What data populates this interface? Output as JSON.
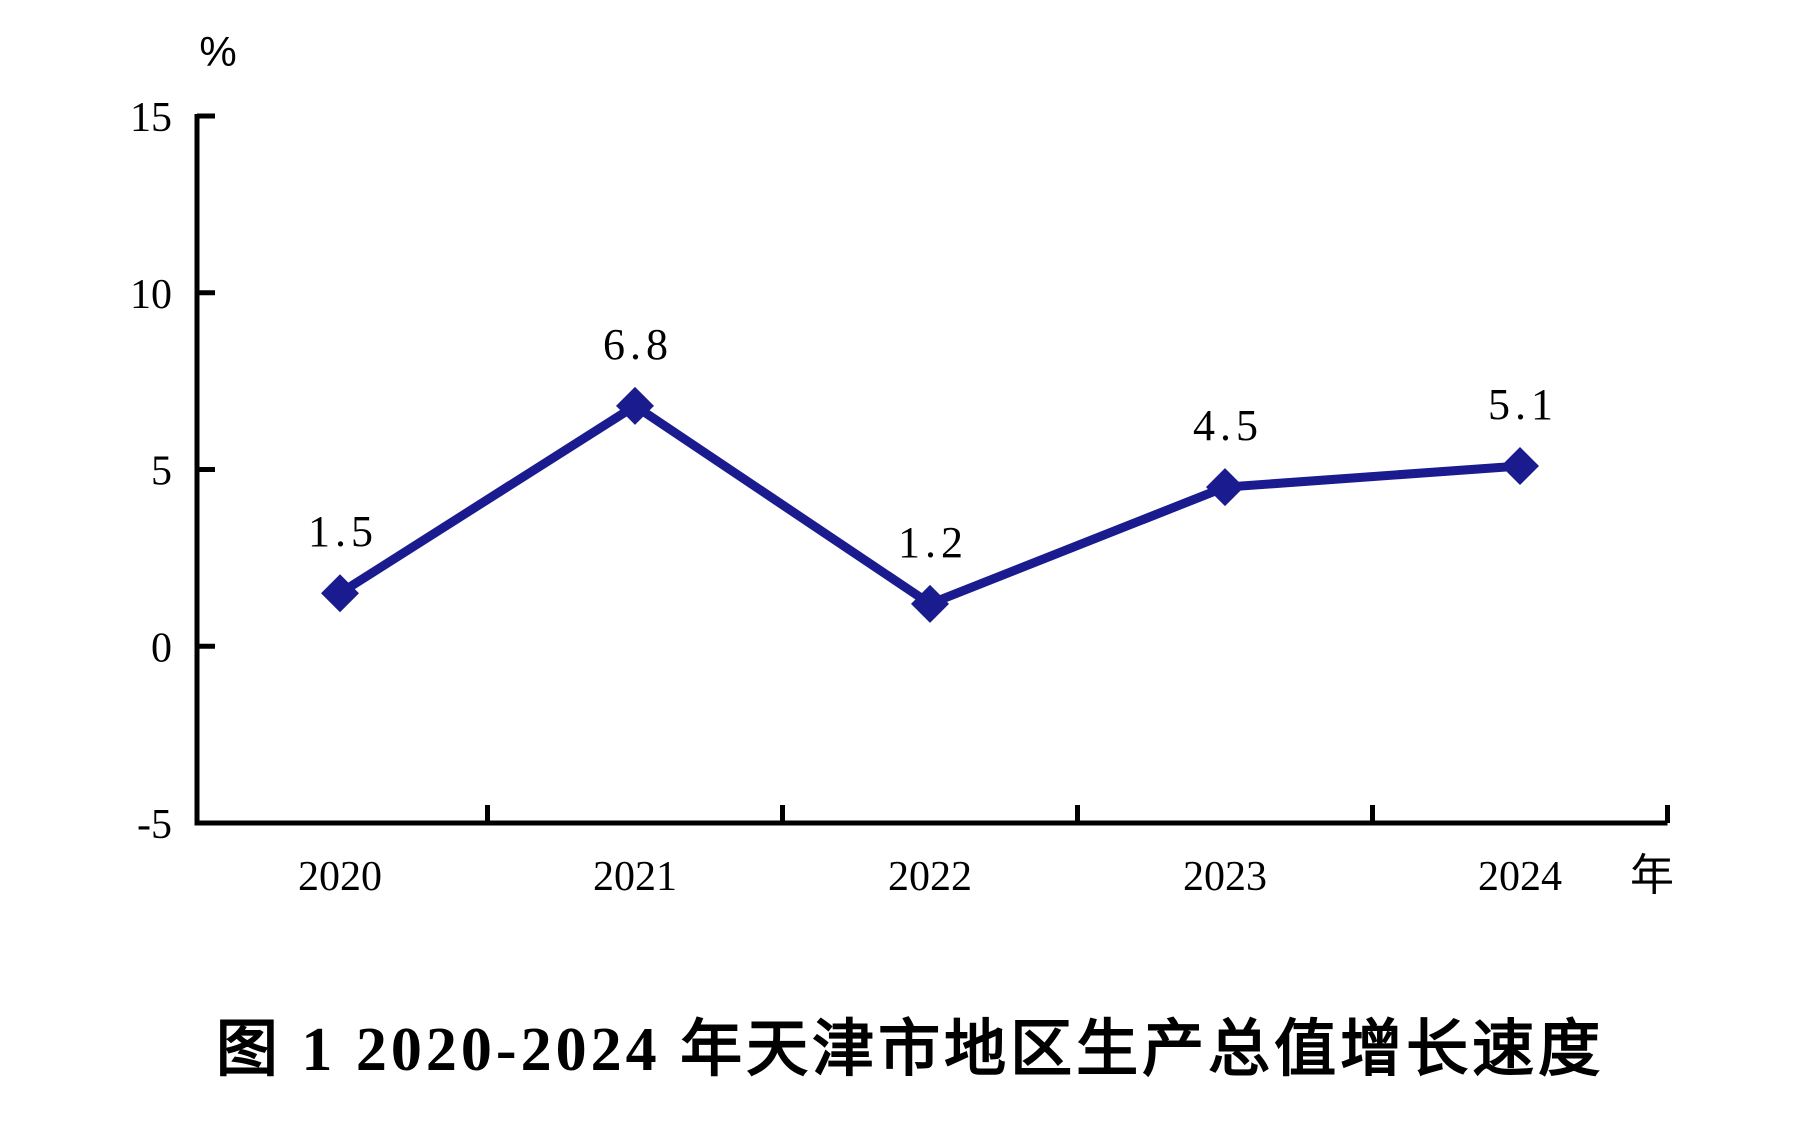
{
  "chart_data": {
    "type": "line",
    "title": "图 1 2020-2024 年天津市地区生产总值增长速度",
    "y_unit_label": "%",
    "x_unit_label": "年",
    "categories": [
      "2020",
      "2021",
      "2022",
      "2023",
      "2024"
    ],
    "values": [
      1.5,
      6.8,
      1.2,
      4.5,
      5.1
    ],
    "data_labels": [
      "1.5",
      "6.8",
      "1.2",
      "4.5",
      "5.1"
    ],
    "y_ticks": [
      15,
      10,
      5,
      0,
      -5
    ],
    "y_tick_labels": [
      "15",
      "10",
      "5",
      "0",
      "-5"
    ],
    "ylim": [
      -5,
      15
    ],
    "grid": false,
    "legend_position": "none",
    "line_color": "#1a1b8f",
    "marker_color": "#1a1b8f",
    "marker_shape": "diamond",
    "axis_color": "#000000",
    "text_color": "#000000"
  }
}
